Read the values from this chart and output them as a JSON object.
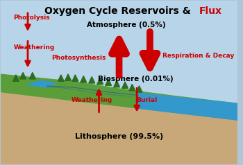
{
  "bg_color": "#aec6d8",
  "sky_color": "#b8d4e8",
  "ground_color": "#c8a878",
  "green_color": "#5a9e3a",
  "green_dark": "#2d6e1e",
  "water_color": "#3399cc",
  "arrow_color": "#cc0000",
  "text_red": "#cc0000",
  "text_black": "#000000",
  "title_black": "Oxygen Cycle Reservoirs & ",
  "title_red": "Flux",
  "label_atmosphere": "Atmosphere (0.5%)",
  "label_biosphere": "Biosphere (0.01%)",
  "label_lithosphere": "Lithosphere (99.5%)",
  "label_photolysis": "Photolysis",
  "label_weathering_left": "Weathering",
  "label_photosynthesis": "Photosynthesis",
  "label_respiration": "Respiration & Decay",
  "label_weathering_bottom": "Weathering",
  "label_burial": "Burial"
}
